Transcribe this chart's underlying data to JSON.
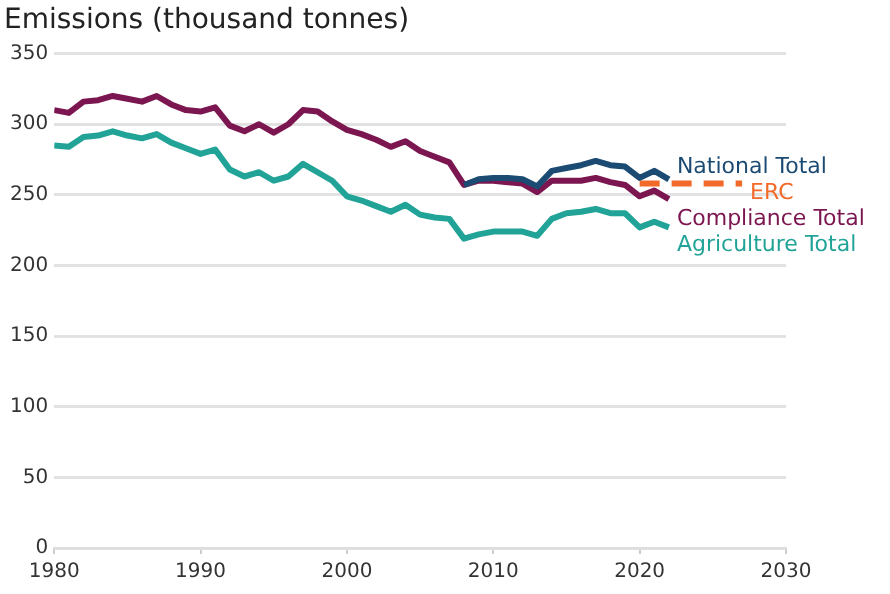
{
  "chart_data": {
    "type": "line",
    "title": "Emissions (thousand tonnes)",
    "xlim": [
      1980,
      2030
    ],
    "xticks": [
      1980,
      1990,
      2000,
      2010,
      2020,
      2030
    ],
    "ylim": [
      0,
      350
    ],
    "yticks": [
      0,
      50,
      100,
      150,
      200,
      250,
      300,
      350
    ],
    "grid": "y",
    "legend": false,
    "marker": "none",
    "series": [
      {
        "name": "National Total",
        "color": "#1b4a72",
        "x": [
          2008,
          2009,
          2010,
          2011,
          2012,
          2013,
          2014,
          2015,
          2016,
          2017,
          2018,
          2019,
          2020,
          2021,
          2022
        ],
        "values": [
          257,
          261,
          262,
          262,
          261,
          256,
          267,
          269,
          271,
          274,
          271,
          270,
          262,
          267,
          261
        ]
      },
      {
        "name": "ERC",
        "color": "#f26a2a",
        "line_style": "dashed",
        "x": [
          2020,
          2027
        ],
        "values": [
          258,
          258
        ]
      },
      {
        "name": "Compliance Total",
        "color": "#7b1650",
        "x": [
          1980,
          1981,
          1982,
          1983,
          1984,
          1985,
          1986,
          1987,
          1988,
          1989,
          1990,
          1991,
          1992,
          1993,
          1994,
          1995,
          1996,
          1997,
          1998,
          1999,
          2000,
          2001,
          2002,
          2003,
          2004,
          2005,
          2006,
          2007,
          2008,
          2009,
          2010,
          2011,
          2012,
          2013,
          2014,
          2015,
          2016,
          2017,
          2018,
          2019,
          2020,
          2021,
          2022
        ],
        "values": [
          310,
          308,
          316,
          317,
          320,
          318,
          316,
          320,
          314,
          310,
          309,
          312,
          299,
          295,
          300,
          294,
          300,
          310,
          309,
          302,
          296,
          293,
          289,
          284,
          288,
          281,
          277,
          273,
          257,
          260,
          260,
          259,
          258,
          252,
          260,
          260,
          260,
          262,
          259,
          257,
          249,
          253,
          247
        ]
      },
      {
        "name": "Agriculture Total",
        "color": "#22a398",
        "x": [
          1980,
          1981,
          1982,
          1983,
          1984,
          1985,
          1986,
          1987,
          1988,
          1989,
          1990,
          1991,
          1992,
          1993,
          1994,
          1995,
          1996,
          1997,
          1998,
          1999,
          2000,
          2001,
          2002,
          2003,
          2004,
          2005,
          2006,
          2007,
          2008,
          2009,
          2010,
          2011,
          2012,
          2013,
          2014,
          2015,
          2016,
          2017,
          2018,
          2019,
          2020,
          2021,
          2022
        ],
        "values": [
          285,
          284,
          291,
          292,
          295,
          292,
          290,
          293,
          287,
          283,
          279,
          282,
          268,
          263,
          266,
          260,
          263,
          272,
          266,
          260,
          249,
          246,
          242,
          238,
          243,
          236,
          234,
          233,
          219,
          222,
          224,
          224,
          224,
          221,
          233,
          237,
          238,
          240,
          237,
          237,
          227,
          231,
          227
        ]
      }
    ]
  }
}
